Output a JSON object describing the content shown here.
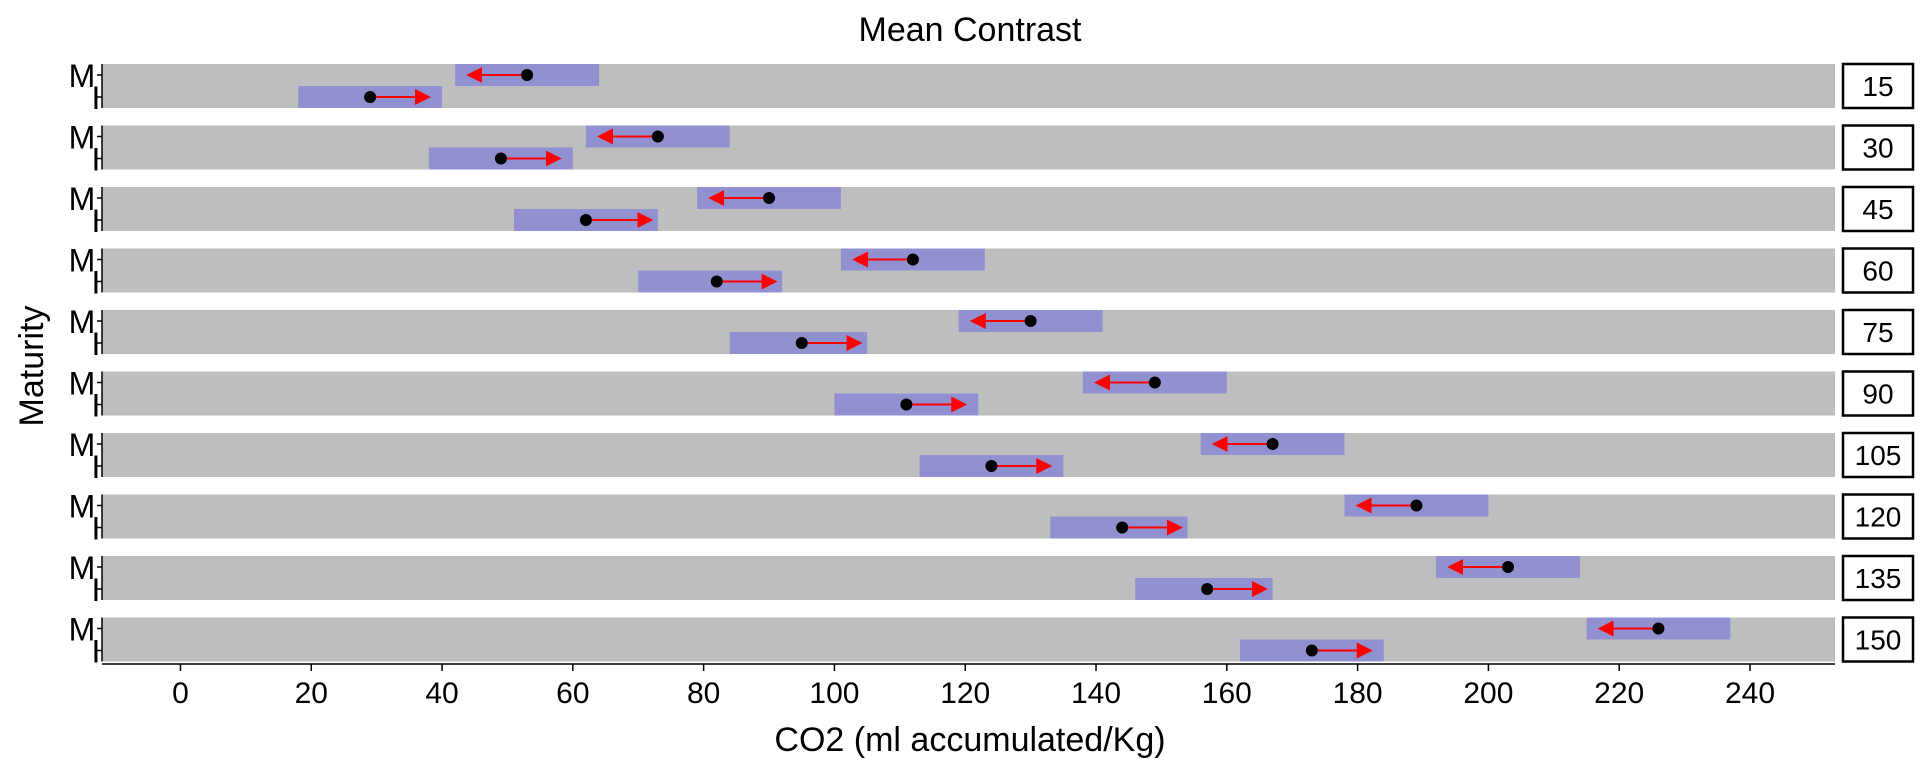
{
  "chart_data": {
    "type": "faceted-interval",
    "title": "Mean Contrast",
    "xlabel": "CO2 (ml accumulated/Kg)",
    "ylabel": "Maturity",
    "xlim": [
      -12,
      253
    ],
    "xticks": [
      0,
      20,
      40,
      60,
      80,
      100,
      120,
      140,
      160,
      180,
      200,
      220,
      240
    ],
    "row_labels": [
      "M",
      "I"
    ],
    "colors": {
      "panel_bg": "#bebebe",
      "interval": "#9191d2",
      "arrow": "#ff0000",
      "point": "#000000"
    },
    "panels": [
      {
        "label": "15",
        "M": {
          "mean": 53,
          "low": 42,
          "high": 64,
          "arrow_to": 44
        },
        "I": {
          "mean": 29,
          "low": 18,
          "high": 40,
          "arrow_to": 38
        }
      },
      {
        "label": "30",
        "M": {
          "mean": 73,
          "low": 62,
          "high": 84,
          "arrow_to": 64
        },
        "I": {
          "mean": 49,
          "low": 38,
          "high": 60,
          "arrow_to": 58
        }
      },
      {
        "label": "45",
        "M": {
          "mean": 90,
          "low": 79,
          "high": 101,
          "arrow_to": 81
        },
        "I": {
          "mean": 62,
          "low": 51,
          "high": 73,
          "arrow_to": 72
        }
      },
      {
        "label": "60",
        "M": {
          "mean": 112,
          "low": 101,
          "high": 123,
          "arrow_to": 103
        },
        "I": {
          "mean": 82,
          "low": 70,
          "high": 92,
          "arrow_to": 91
        }
      },
      {
        "label": "75",
        "M": {
          "mean": 130,
          "low": 119,
          "high": 141,
          "arrow_to": 121
        },
        "I": {
          "mean": 95,
          "low": 84,
          "high": 105,
          "arrow_to": 104
        }
      },
      {
        "label": "90",
        "M": {
          "mean": 149,
          "low": 138,
          "high": 160,
          "arrow_to": 140
        },
        "I": {
          "mean": 111,
          "low": 100,
          "high": 122,
          "arrow_to": 120
        }
      },
      {
        "label": "105",
        "M": {
          "mean": 167,
          "low": 156,
          "high": 178,
          "arrow_to": 158
        },
        "I": {
          "mean": 124,
          "low": 113,
          "high": 135,
          "arrow_to": 133
        }
      },
      {
        "label": "120",
        "M": {
          "mean": 189,
          "low": 178,
          "high": 200,
          "arrow_to": 180
        },
        "I": {
          "mean": 144,
          "low": 133,
          "high": 154,
          "arrow_to": 153
        }
      },
      {
        "label": "135",
        "M": {
          "mean": 203,
          "low": 192,
          "high": 214,
          "arrow_to": 194
        },
        "I": {
          "mean": 157,
          "low": 146,
          "high": 167,
          "arrow_to": 166
        }
      },
      {
        "label": "150",
        "M": {
          "mean": 226,
          "low": 215,
          "high": 237,
          "arrow_to": 217
        },
        "I": {
          "mean": 173,
          "low": 162,
          "high": 184,
          "arrow_to": 182
        }
      }
    ]
  }
}
